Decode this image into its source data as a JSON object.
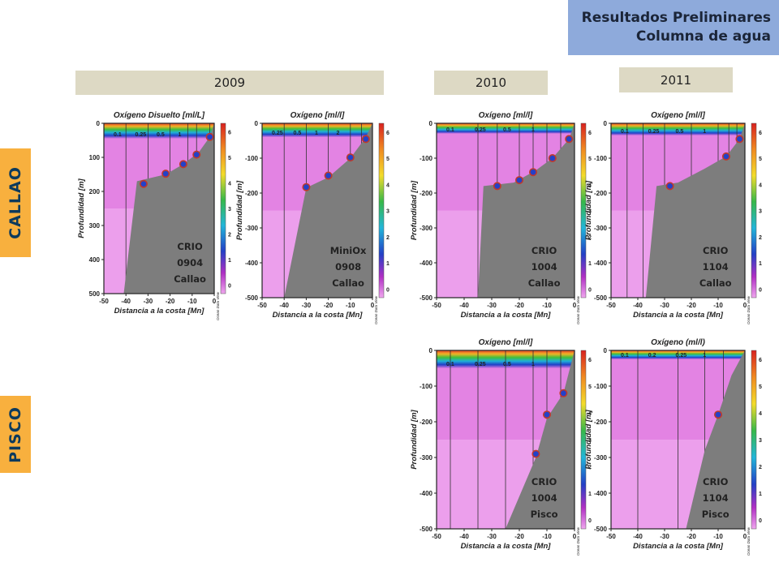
{
  "header": {
    "title_line1": "Resultados Preliminares",
    "title_line2": "Columna de agua"
  },
  "years": [
    "2009",
    "2010",
    "2011"
  ],
  "regions": {
    "callao": "CALLAO",
    "pisco": "PISCO"
  },
  "common": {
    "xlabel": "Distancia a la costa [Mn]",
    "ylabel": "Profundidad [m]",
    "colorbar_credit": "Ocean Data View",
    "colorbar_ticks": [
      "0",
      "1",
      "2",
      "3",
      "4",
      "5",
      "6"
    ]
  },
  "colors": {
    "anoxic": "#e07ae0",
    "low_o2": "#ec9fec",
    "bottom": "#7d7d7d",
    "station": "#2441c8",
    "title_box": "#8eaadb",
    "year_box": "#ddd9c4",
    "region_box": "#f8b03e"
  },
  "chart_data": [
    {
      "type": "heatmap",
      "title": "Oxígeno Disuelto [ml/L]",
      "cruise": [
        "CRIO",
        "0904",
        "Callao"
      ],
      "xlim": [
        -50,
        0
      ],
      "ylim": [
        0,
        500
      ],
      "xticks": [
        "-50",
        "-40",
        "-30",
        "-20",
        "-10",
        "0"
      ],
      "yticks": [
        "0",
        "100",
        "200",
        "300",
        "400",
        "500"
      ],
      "station_x": [
        -40,
        -30,
        -20,
        -12,
        -8,
        -2
      ],
      "isolines": [
        "0.1",
        "0.25",
        "0.5",
        "1",
        "2",
        "3",
        "4",
        "5"
      ],
      "bottom_profile": [
        [
          -41,
          500
        ],
        [
          -35,
          170
        ],
        [
          -22,
          150
        ],
        [
          -14,
          120
        ],
        [
          -7,
          85
        ],
        [
          -2,
          40
        ],
        [
          0,
          0
        ]
      ],
      "stations": [
        [
          -32,
          178
        ],
        [
          -22,
          148
        ],
        [
          -14,
          120
        ],
        [
          -8,
          92
        ],
        [
          -2,
          40
        ]
      ],
      "surface_layer_depth": 45
    },
    {
      "type": "heatmap",
      "title": "Oxígeno [ml/l]",
      "cruise": [
        "MiniOx",
        "0908",
        "Callao"
      ],
      "xlim": [
        -50,
        0
      ],
      "ylim": [
        0,
        500
      ],
      "xticks": [
        "-50",
        "-40",
        "-30",
        "-20",
        "-10",
        "0"
      ],
      "yticks": [
        "0",
        "-100",
        "-200",
        "-300",
        "-400",
        "-500"
      ],
      "station_x": [
        -40,
        -30,
        -20,
        -10,
        -5
      ],
      "isolines": [
        "0.25",
        "0.5",
        "1",
        "2",
        "3",
        "4",
        "5"
      ],
      "bottom_profile": [
        [
          -40,
          500
        ],
        [
          -30,
          185
        ],
        [
          -20,
          155
        ],
        [
          -10,
          100
        ],
        [
          -3,
          40
        ],
        [
          0,
          0
        ]
      ],
      "stations": [
        [
          -30,
          183
        ],
        [
          -20,
          150
        ],
        [
          -10,
          98
        ],
        [
          -3,
          45
        ]
      ],
      "surface_layer_depth": 40
    },
    {
      "type": "heatmap",
      "title": "Oxígeno [ml/l]",
      "cruise": [
        "CRIO",
        "1004",
        "Callao"
      ],
      "xlim": [
        -50,
        0
      ],
      "ylim": [
        0,
        500
      ],
      "xticks": [
        "-50",
        "-40",
        "-30",
        "-20",
        "-10",
        "0"
      ],
      "yticks": [
        "0",
        "-100",
        "-200",
        "-300",
        "-400",
        "-500"
      ],
      "station_x": [
        -35,
        -28,
        -20,
        -15,
        -10,
        -5
      ],
      "isolines": [
        "0.1",
        "0.25",
        "0.5",
        "1",
        "2",
        "4",
        "5"
      ],
      "bottom_profile": [
        [
          -35,
          500
        ],
        [
          -33,
          180
        ],
        [
          -22,
          170
        ],
        [
          -14,
          135
        ],
        [
          -8,
          100
        ],
        [
          -2,
          45
        ],
        [
          0,
          0
        ]
      ],
      "stations": [
        [
          -28,
          180
        ],
        [
          -20,
          163
        ],
        [
          -15,
          140
        ],
        [
          -8,
          100
        ],
        [
          -2,
          45
        ]
      ],
      "surface_layer_depth": 30
    },
    {
      "type": "heatmap",
      "title": "Oxígeno [ml/l]",
      "cruise": [
        "CRIO",
        "1104",
        "Callao"
      ],
      "xlim": [
        -50,
        0
      ],
      "ylim": [
        0,
        500
      ],
      "xticks": [
        "-50",
        "-40",
        "-30",
        "-20",
        "-10",
        "0"
      ],
      "yticks": [
        "0",
        "-100",
        "-200",
        "-300",
        "-400",
        "-500"
      ],
      "station_x": [
        -44,
        -38,
        -30,
        -20,
        -10,
        -6,
        -3
      ],
      "isolines": [
        "0.1",
        "0.25",
        "0.5",
        "1",
        "2",
        "3",
        "4"
      ],
      "bottom_profile": [
        [
          -37,
          500
        ],
        [
          -33,
          180
        ],
        [
          -25,
          170
        ],
        [
          -15,
          130
        ],
        [
          -7,
          95
        ],
        [
          -2,
          45
        ],
        [
          0,
          0
        ]
      ],
      "stations": [
        [
          -28,
          180
        ],
        [
          -7,
          95
        ],
        [
          -2,
          45
        ]
      ],
      "surface_layer_depth": 35
    },
    {
      "type": "heatmap",
      "title": "Oxígeno [ml/l]",
      "cruise": [
        "CRIO",
        "1004",
        "Pisco"
      ],
      "xlim": [
        -50,
        0
      ],
      "ylim": [
        0,
        500
      ],
      "xticks": [
        "-50",
        "-40",
        "-30",
        "-20",
        "-10",
        "0"
      ],
      "yticks": [
        "0",
        "-100",
        "-200",
        "-300",
        "-400",
        "-500"
      ],
      "station_x": [
        -45,
        -35,
        -25,
        -15,
        -10,
        -5
      ],
      "isolines": [
        "0.1",
        "0.25",
        "0.5",
        "1",
        "2",
        "4",
        "5"
      ],
      "bottom_profile": [
        [
          -25,
          500
        ],
        [
          -14,
          300
        ],
        [
          -10,
          190
        ],
        [
          -4,
          120
        ],
        [
          0,
          0
        ]
      ],
      "stations": [
        [
          -14,
          290
        ],
        [
          -10,
          180
        ],
        [
          -4,
          120
        ]
      ],
      "surface_layer_depth": 50
    },
    {
      "type": "heatmap",
      "title": "Oxígeno (ml/l)",
      "cruise": [
        "CRIO",
        "1104",
        "Pisco"
      ],
      "xlim": [
        -50,
        0
      ],
      "ylim": [
        0,
        500
      ],
      "xticks": [
        "-50",
        "-40",
        "-30",
        "-20",
        "-10",
        "0"
      ],
      "yticks": [
        "0",
        "-100",
        "-200",
        "-300",
        "-400",
        "-500"
      ],
      "station_x": [
        -40,
        -25,
        -15,
        -8
      ],
      "isolines": [
        "0.1",
        "0.2",
        "0.25",
        "1",
        "2"
      ],
      "bottom_profile": [
        [
          -22,
          500
        ],
        [
          -15,
          280
        ],
        [
          -10,
          180
        ],
        [
          -5,
          70
        ],
        [
          0,
          0
        ]
      ],
      "stations": [
        [
          -10,
          180
        ]
      ],
      "surface_layer_depth": 25
    }
  ]
}
